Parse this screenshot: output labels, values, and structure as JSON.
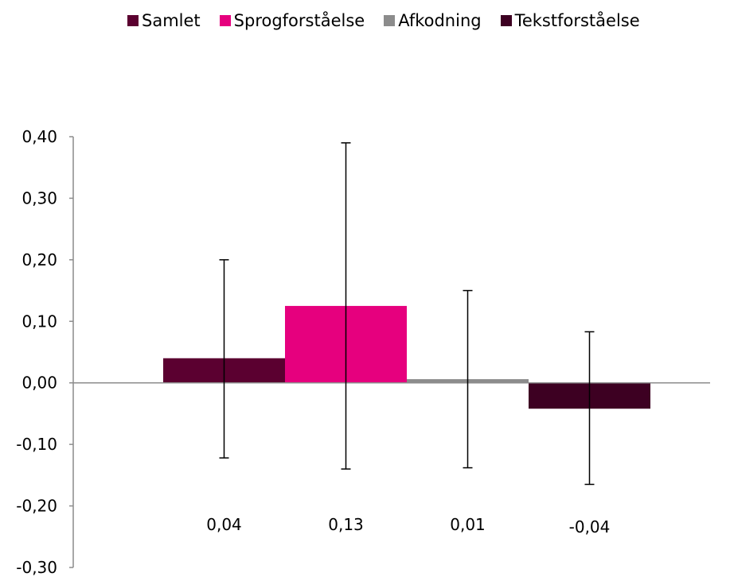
{
  "chart_data": {
    "type": "bar",
    "categories": [
      "Samlet",
      "Sprogforståelse",
      "Afkodning",
      "Tekstforståelse"
    ],
    "values": [
      0.04,
      0.125,
      0.006,
      -0.042
    ],
    "error_low": [
      -0.122,
      -0.14,
      -0.138,
      -0.165
    ],
    "error_high": [
      0.2,
      0.39,
      0.15,
      0.083
    ],
    "data_labels": [
      "0,04",
      "0,13",
      "0,01",
      "-0,04"
    ],
    "colors": [
      "#5b0030",
      "#e6007e",
      "#8c8c8c",
      "#3d0022"
    ],
    "ylim": [
      -0.3,
      0.4
    ],
    "yticks": [
      0.4,
      0.3,
      0.2,
      0.1,
      0.0,
      -0.1,
      -0.2,
      -0.3
    ],
    "ytick_labels": [
      "0,40",
      "0,30",
      "0,20",
      "0,10",
      "0,00",
      "-0,10",
      "-0,20",
      "-0,30"
    ],
    "grid": false,
    "legend_position": "top"
  }
}
